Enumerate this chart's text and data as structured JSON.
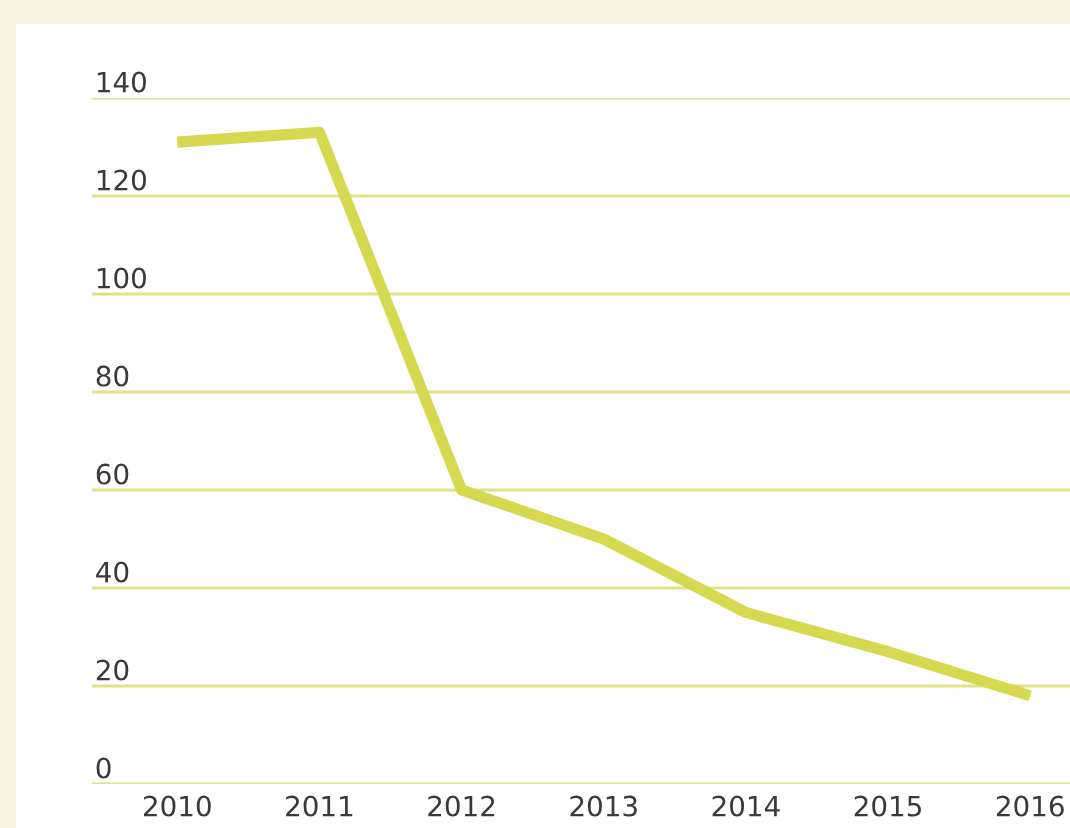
{
  "chart_data": {
    "type": "line",
    "categories": [
      "2010",
      "2011",
      "2012",
      "2013",
      "2014",
      "2015",
      "2016"
    ],
    "series": [
      {
        "color": "#d4d94f",
        "values": [
          131,
          133,
          60,
          50,
          35,
          27,
          18
        ]
      }
    ],
    "ylim": [
      0,
      140
    ],
    "yticks": [
      0,
      20,
      40,
      60,
      80,
      100,
      120,
      140
    ],
    "grid": "y",
    "marker": "none",
    "line_style": "solid"
  }
}
